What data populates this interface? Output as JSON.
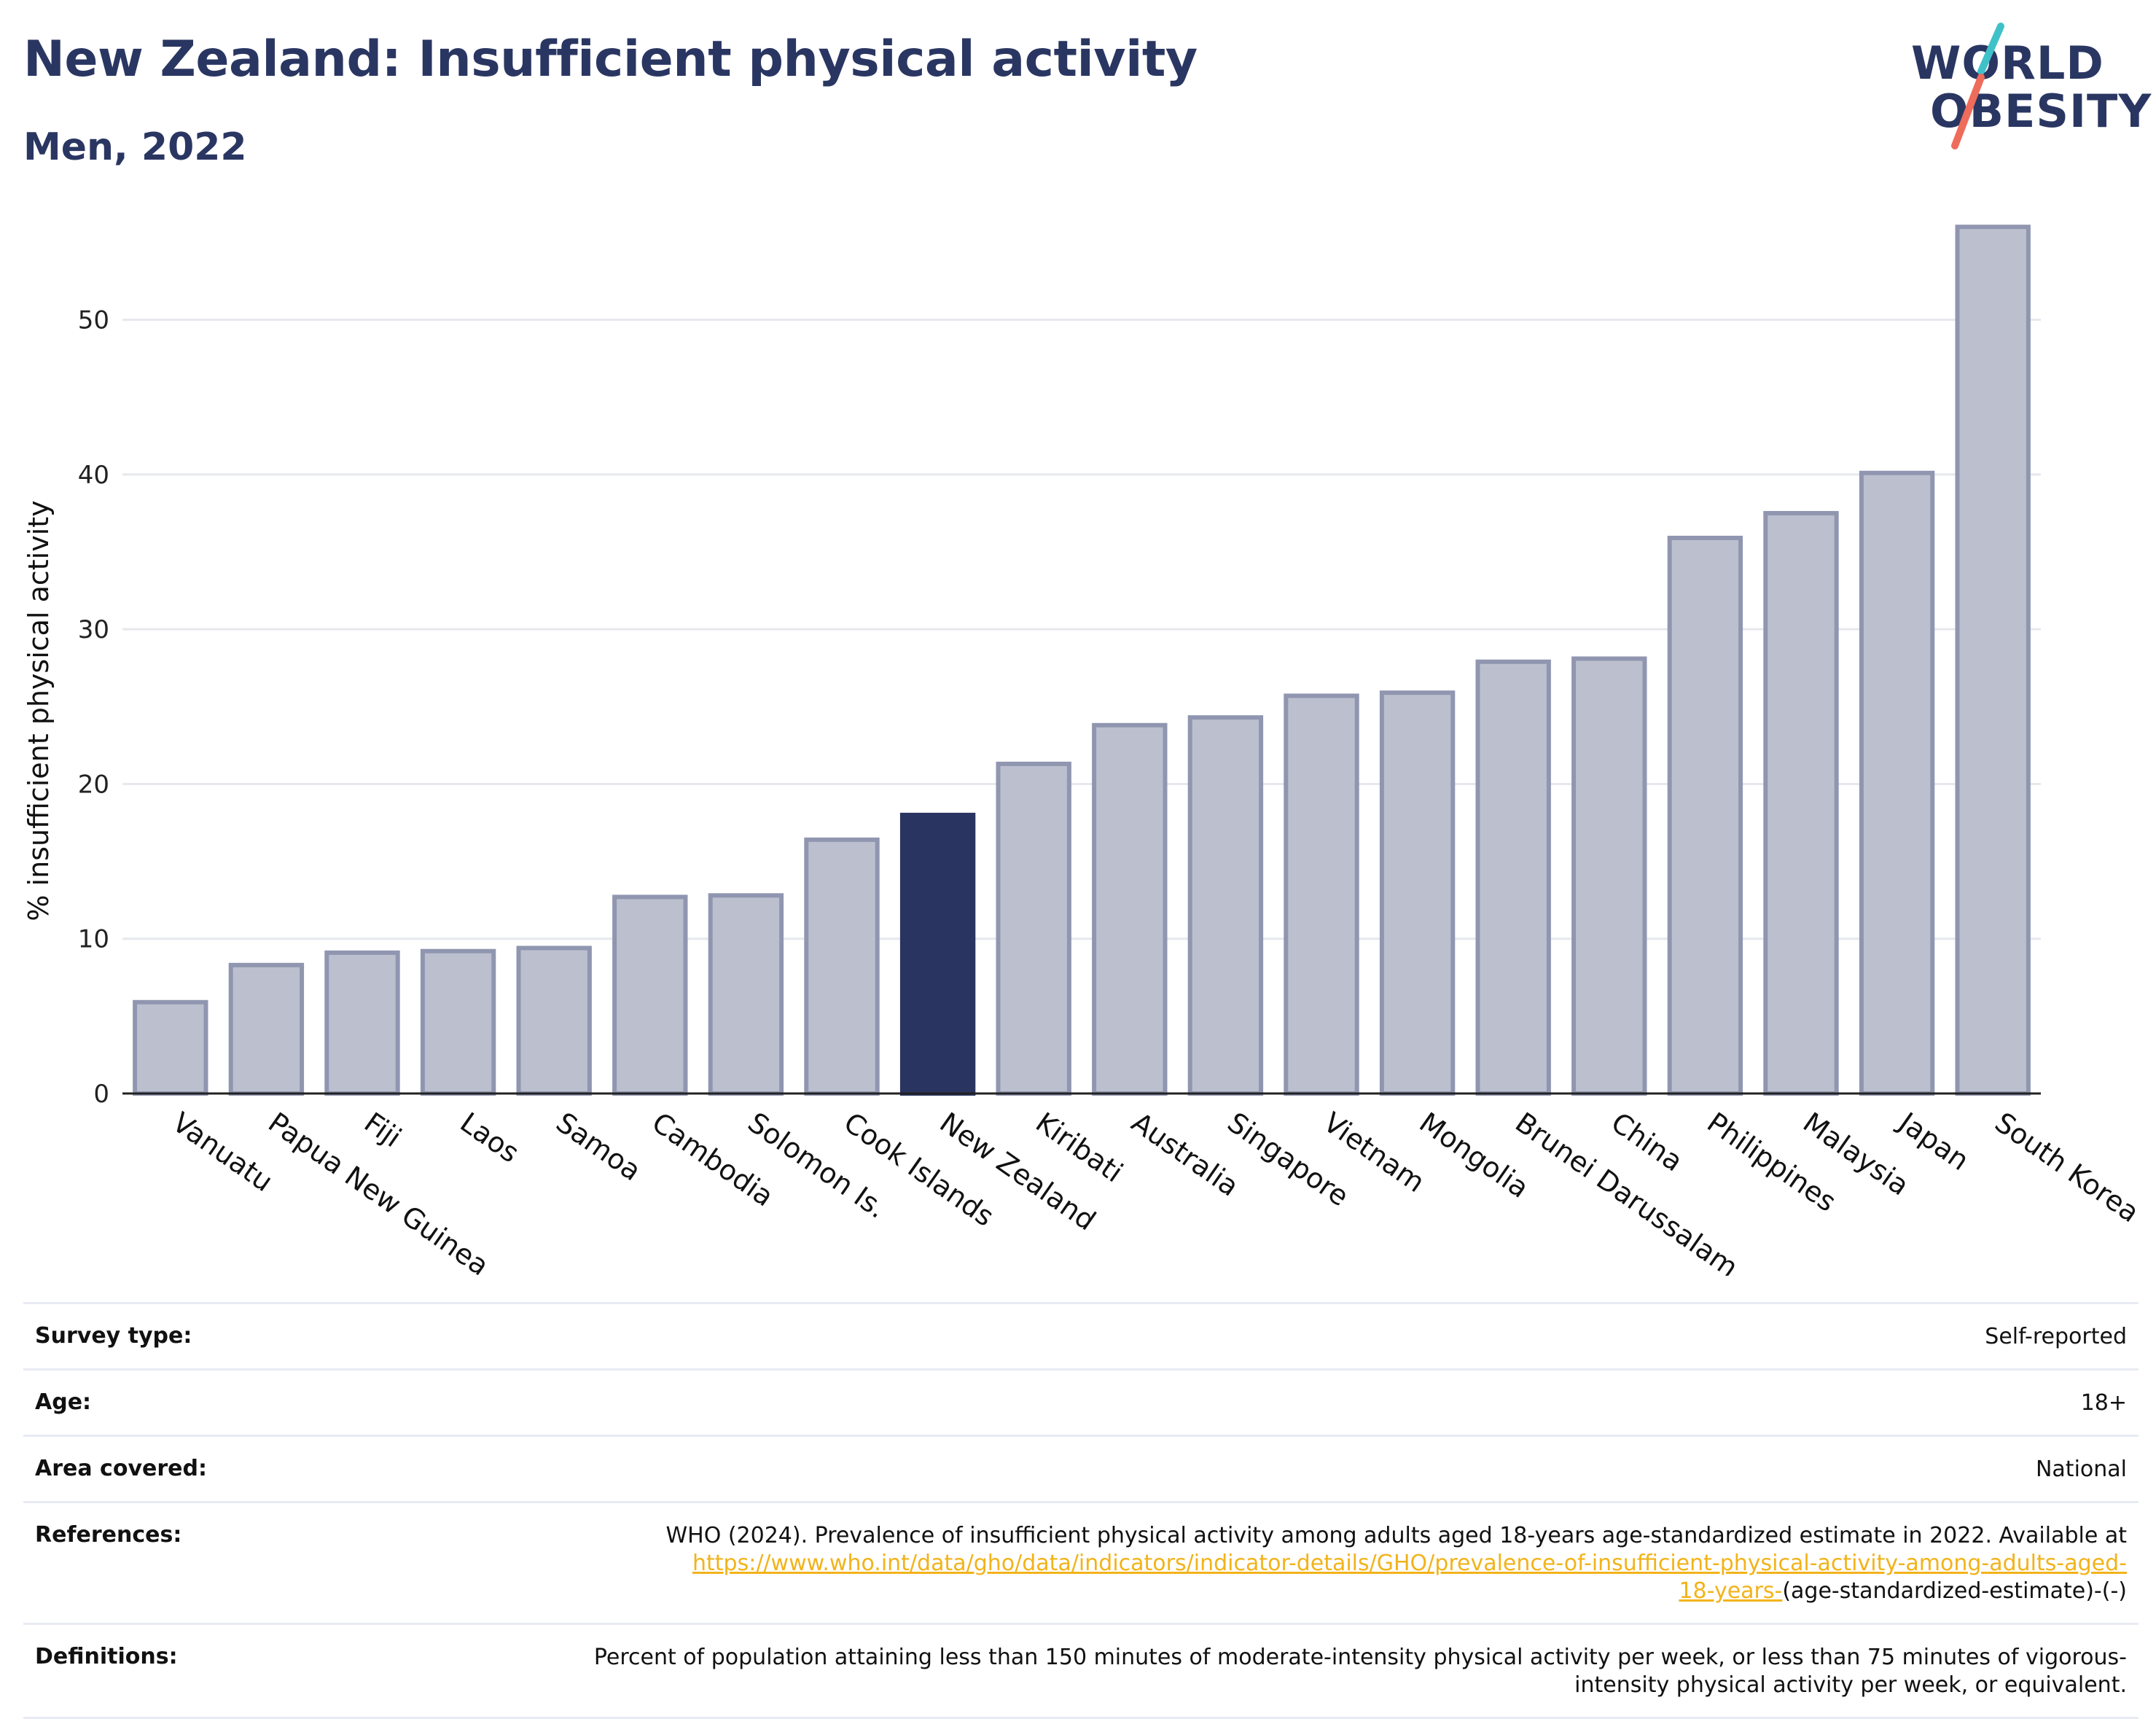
{
  "header": {
    "title": "New Zealand: Insufficient physical activity",
    "subtitle": "Men, 2022"
  },
  "logo": {
    "line1": "WORLD",
    "line2": "OBESITY",
    "accent_colors": [
      "#3fc1c9",
      "#ef6b5a"
    ]
  },
  "colors": {
    "bar": "#bcc0ce",
    "bar_edge": "#9096b0",
    "highlight": "#293460",
    "grid": "#e6e8ee",
    "link": "#f2b31a"
  },
  "chart_data": {
    "type": "bar",
    "ylabel": "% insufficient physical activity",
    "ylim": [
      0,
      57
    ],
    "yticks": [
      0,
      10,
      20,
      30,
      40,
      50
    ],
    "grid": true,
    "highlight": "New Zealand",
    "categories": [
      "Vanuatu",
      "Papua New Guinea",
      "Fiji",
      "Laos",
      "Samoa",
      "Cambodia",
      "Solomon Is.",
      "Cook Islands",
      "New Zealand",
      "Kiribati",
      "Australia",
      "Singapore",
      "Vietnam",
      "Mongolia",
      "Brunei Darussalam",
      "China",
      "Philippines",
      "Malaysia",
      "Japan",
      "South Korea"
    ],
    "values": [
      5.9,
      8.3,
      9.1,
      9.2,
      9.4,
      12.7,
      12.8,
      16.4,
      18.0,
      21.3,
      23.8,
      24.3,
      25.7,
      25.9,
      27.9,
      28.1,
      35.9,
      37.5,
      40.1,
      56.0
    ]
  },
  "info": {
    "survey_label": "Survey type:",
    "survey_value": "Self-reported",
    "age_label": "Age:",
    "age_value": "18+",
    "area_label": "Area covered:",
    "area_value": "National",
    "references_label": "References:",
    "references_text": "WHO (2024). Prevalence of insufficient physical activity among adults aged 18-years age-standardized estimate in 2022. Available at",
    "references_link_1": "https://www.who.int/data/gho/data/indicators/indicator-details/GHO/prevalence-of-insufficient-physical-activity-among-adults-aged-",
    "references_link_2": "18-years-",
    "references_suffix": "(age-standardized-estimate)-(-)",
    "definitions_label": "Definitions:",
    "definitions_text": "Percent of population attaining less than 150 minutes of moderate-intensity physical activity per week, or less than 75 minutes of vigorous-intensity physical activity per week, or equivalent."
  }
}
